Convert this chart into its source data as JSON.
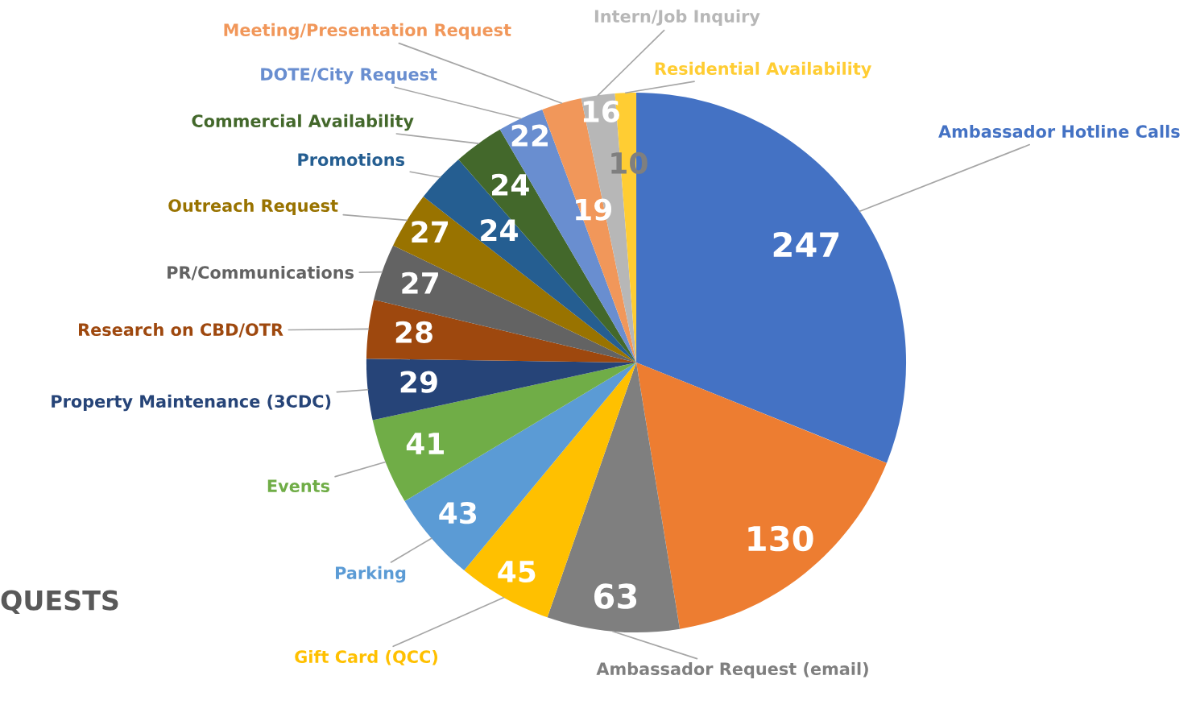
{
  "chart_data": {
    "type": "pie",
    "categories": [
      "Ambassador Hotline Calls",
      null,
      "Ambassador Request (email)",
      "Gift Card (QCC)",
      "Parking",
      "Events",
      "Property Maintenance (3CDC)",
      "Research on CBD/OTR",
      "PR/Communications",
      "Outreach Request",
      "Promotions",
      "Commercial Availability",
      "DOTE/City Request",
      "Meeting/Presentation Request",
      "Intern/Job Inquiry",
      "Residential Availability"
    ],
    "values": [
      247,
      130,
      63,
      45,
      43,
      41,
      29,
      28,
      27,
      27,
      24,
      24,
      22,
      19,
      16,
      10
    ],
    "colors": [
      "#4472c4",
      "#ed7d31",
      "#7f7f7f",
      "#ffc000",
      "#5b9bd5",
      "#70ad47",
      "#264478",
      "#9e480e",
      "#636363",
      "#997300",
      "#255e91",
      "#43682b",
      "#698ed0",
      "#f1975a",
      "#b7b7b7",
      "#ffcd33"
    ],
    "data_labels": true,
    "annotations": [
      "QUESTS"
    ]
  }
}
